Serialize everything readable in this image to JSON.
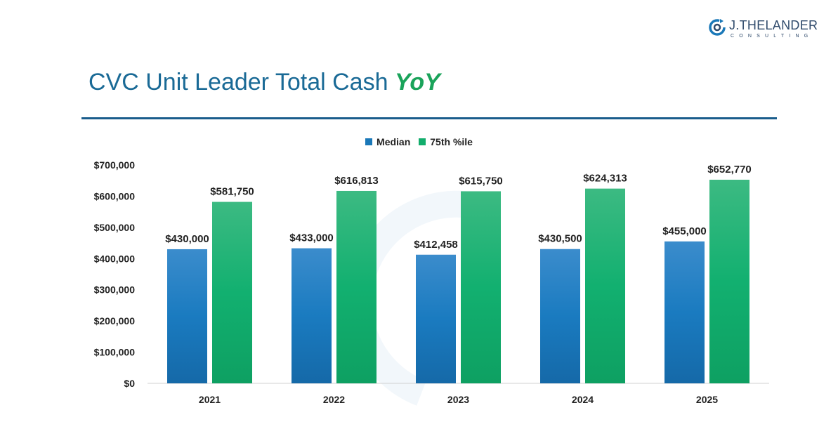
{
  "logo": {
    "name": "J.THELANDER",
    "sub": "CONSULTING"
  },
  "title": {
    "main": "CVC Unit Leader Total Cash",
    "accent": "YoY"
  },
  "colors": {
    "median": "#1a78b8",
    "p75": "#12ad6c",
    "title": "#1a6a96",
    "accent": "#1aa35a"
  },
  "chart_data": {
    "type": "bar",
    "categories": [
      "2021",
      "2022",
      "2023",
      "2024",
      "2025"
    ],
    "series": [
      {
        "name": "Median",
        "values": [
          430000,
          433000,
          412458,
          430500,
          455000
        ],
        "labels": [
          "$430,000",
          "$433,000",
          "$412,458",
          "$430,500",
          "$455,000"
        ]
      },
      {
        "name": "75th %ile",
        "values": [
          581750,
          616813,
          615750,
          624313,
          652770
        ],
        "labels": [
          "$581,750",
          "$616,813",
          "$615,750",
          "$624,313",
          "$652,770"
        ]
      }
    ],
    "ylim": [
      0,
      700000
    ],
    "yticks": [
      0,
      100000,
      200000,
      300000,
      400000,
      500000,
      600000,
      700000
    ],
    "ytick_labels": [
      "$0",
      "$100,000",
      "$200,000",
      "$300,000",
      "$400,000",
      "$500,000",
      "$600,000",
      "$700,000"
    ],
    "legend": "top-center",
    "grid": false
  }
}
